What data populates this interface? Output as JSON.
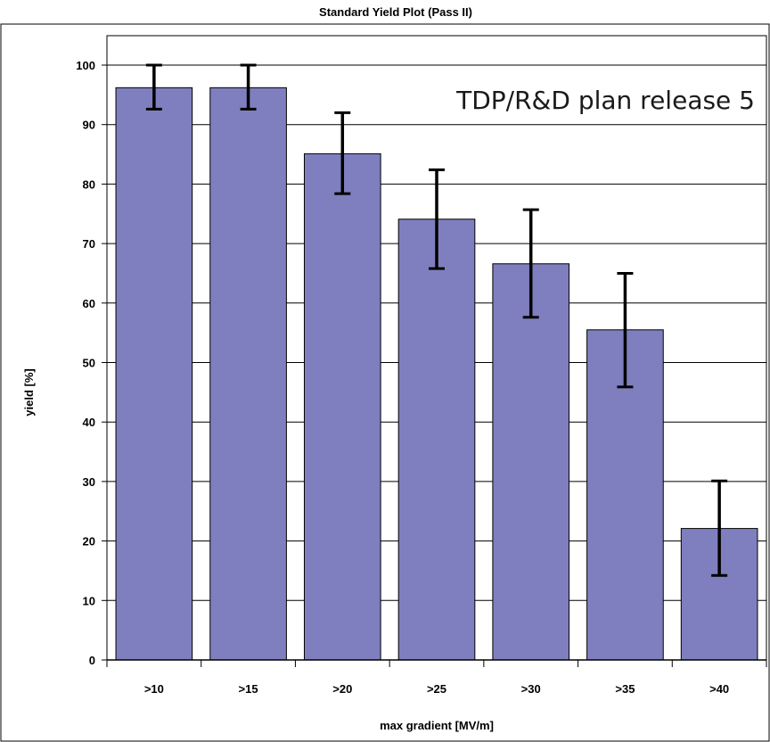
{
  "chart_data": {
    "type": "bar",
    "title": "Standard Yield Plot (Pass II)",
    "xlabel": "max gradient [MV/m]",
    "ylabel": "yield [%]",
    "annotation": "TDP/R&D plan release 5",
    "categories": [
      ">10",
      ">15",
      ">20",
      ">25",
      ">30",
      ">35",
      ">40"
    ],
    "values": [
      96.2,
      96.2,
      85.1,
      74.1,
      66.6,
      55.5,
      22.1
    ],
    "error_high": [
      100.0,
      100.0,
      92.0,
      82.4,
      75.7,
      65.0,
      30.1
    ],
    "error_low": [
      92.6,
      92.6,
      78.4,
      65.8,
      57.6,
      45.9,
      14.2
    ],
    "ylim": [
      0,
      100
    ],
    "yticks": [
      "0",
      "10",
      "20",
      "30",
      "40",
      "50",
      "60",
      "70",
      "80",
      "90",
      "100"
    ],
    "grid": true,
    "bar_color": "#7f7fbf",
    "legend": "none"
  }
}
